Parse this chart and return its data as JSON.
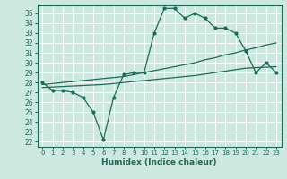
{
  "xlabel": "Humidex (Indice chaleur)",
  "bg_color": "#cce8df",
  "grid_color": "#ffffff",
  "line_color": "#1a6b5a",
  "xlim": [
    -0.5,
    23.5
  ],
  "ylim": [
    21.5,
    35.8
  ],
  "xticks": [
    0,
    1,
    2,
    3,
    4,
    5,
    6,
    7,
    8,
    9,
    10,
    11,
    12,
    13,
    14,
    15,
    16,
    17,
    18,
    19,
    20,
    21,
    22,
    23
  ],
  "yticks": [
    22,
    23,
    24,
    25,
    26,
    27,
    28,
    29,
    30,
    31,
    32,
    33,
    34,
    35
  ],
  "series1_x": [
    0,
    1,
    2,
    3,
    4,
    5,
    6,
    7,
    8,
    9,
    10,
    11,
    12,
    13,
    14,
    15,
    16,
    17,
    18,
    19,
    20,
    21,
    22,
    23
  ],
  "series1_y": [
    28.0,
    27.2,
    27.2,
    27.0,
    26.5,
    25.0,
    22.2,
    26.5,
    28.8,
    29.0,
    29.0,
    33.0,
    35.5,
    35.5,
    34.5,
    35.0,
    34.5,
    33.5,
    33.5,
    33.0,
    31.2,
    29.0,
    30.0,
    29.0
  ],
  "series2_x": [
    0,
    1,
    2,
    3,
    4,
    5,
    6,
    7,
    8,
    9,
    10,
    11,
    12,
    13,
    14,
    15,
    16,
    17,
    18,
    19,
    20,
    21,
    22,
    23
  ],
  "series2_y": [
    27.8,
    27.9,
    28.0,
    28.1,
    28.2,
    28.3,
    28.4,
    28.5,
    28.6,
    28.8,
    29.0,
    29.2,
    29.4,
    29.6,
    29.8,
    30.0,
    30.3,
    30.5,
    30.8,
    31.0,
    31.3,
    31.5,
    31.8,
    32.0
  ],
  "series3_x": [
    0,
    1,
    2,
    3,
    4,
    5,
    6,
    7,
    8,
    9,
    10,
    11,
    12,
    13,
    14,
    15,
    16,
    17,
    18,
    19,
    20,
    21,
    22,
    23
  ],
  "series3_y": [
    27.5,
    27.55,
    27.6,
    27.65,
    27.7,
    27.75,
    27.8,
    27.9,
    28.0,
    28.1,
    28.2,
    28.3,
    28.4,
    28.5,
    28.6,
    28.7,
    28.85,
    29.0,
    29.15,
    29.3,
    29.45,
    29.5,
    29.55,
    29.6
  ]
}
